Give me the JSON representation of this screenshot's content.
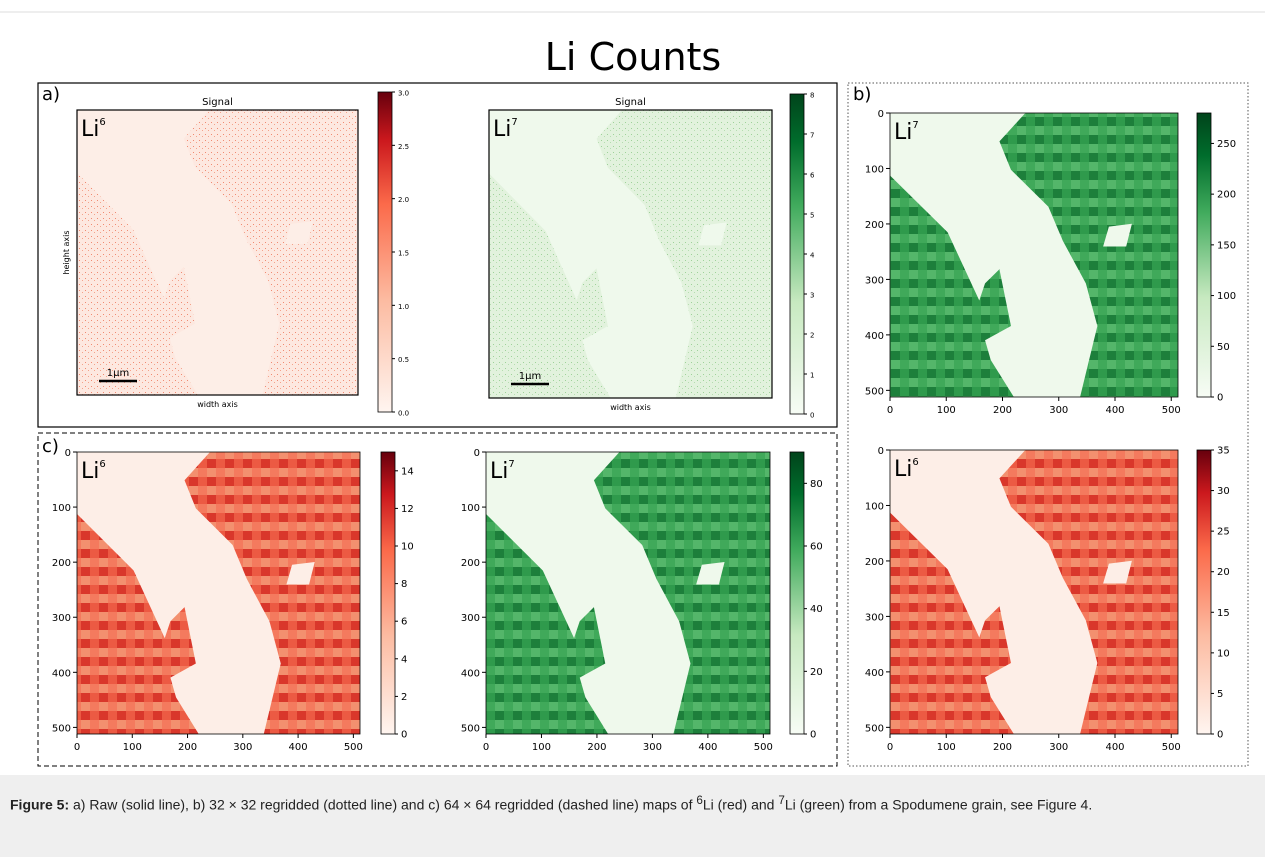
{
  "title": "Li Counts",
  "panels": [
    {
      "label": "a)",
      "maps": [
        {
          "title": "Signal",
          "symbol": "Li",
          "mass": "6",
          "ylabel": "height axis",
          "xlabel": "width axis",
          "scalebar": "1μm",
          "color": "red",
          "clim": [
            0,
            3
          ],
          "cticks": [
            {
              "value": 0,
              "label": "0.0"
            },
            {
              "value": 0.5,
              "label": "0.5"
            },
            {
              "value": 1,
              "label": "1.0"
            },
            {
              "value": 1.5,
              "label": "1.5"
            },
            {
              "value": 2,
              "label": "2.0"
            },
            {
              "value": 2.5,
              "label": "2.5"
            },
            {
              "value": 3,
              "label": "3.0"
            }
          ]
        },
        {
          "title": "Signal",
          "symbol": "Li",
          "mass": "7",
          "xlabel": "width axis",
          "scalebar": "1μm",
          "color": "green",
          "clim": [
            0,
            8
          ],
          "cticks": [
            0,
            1,
            2,
            3,
            4,
            5,
            6,
            7,
            8
          ]
        }
      ]
    },
    {
      "label": "b)",
      "maps": [
        {
          "symbol": "Li",
          "mass": "7",
          "color": "green",
          "xlim": [
            0,
            512
          ],
          "ylim": [
            0,
            512
          ],
          "xticks": [
            0,
            100,
            200,
            300,
            400,
            500
          ],
          "yticks": [
            0,
            100,
            200,
            300,
            400,
            500
          ],
          "clim": [
            0,
            280
          ],
          "cticks": [
            0,
            50,
            100,
            150,
            200,
            250
          ]
        },
        {
          "symbol": "Li",
          "mass": "6",
          "color": "red",
          "xlim": [
            0,
            512
          ],
          "ylim": [
            0,
            512
          ],
          "xticks": [
            0,
            100,
            200,
            300,
            400,
            500
          ],
          "yticks": [
            0,
            100,
            200,
            300,
            400,
            500
          ],
          "clim": [
            0,
            35
          ],
          "cticks": [
            0,
            5,
            10,
            15,
            20,
            25,
            30,
            35
          ]
        }
      ]
    },
    {
      "label": "c)",
      "maps": [
        {
          "symbol": "Li",
          "mass": "6",
          "color": "red",
          "xlim": [
            0,
            512
          ],
          "ylim": [
            0,
            512
          ],
          "xticks": [
            0,
            100,
            200,
            300,
            400,
            500
          ],
          "yticks": [
            0,
            100,
            200,
            300,
            400,
            500
          ],
          "clim": [
            0,
            15
          ],
          "cticks": [
            0,
            2,
            4,
            6,
            8,
            10,
            12,
            14
          ]
        },
        {
          "symbol": "Li",
          "mass": "7",
          "color": "green",
          "xlim": [
            0,
            512
          ],
          "ylim": [
            0,
            512
          ],
          "xticks": [
            0,
            100,
            200,
            300,
            400,
            500
          ],
          "yticks": [
            0,
            100,
            200,
            300,
            400,
            500
          ],
          "clim": [
            0,
            90
          ],
          "cticks": [
            0,
            20,
            40,
            60,
            80
          ]
        }
      ]
    }
  ],
  "caption": {
    "prefix": "Figure 5:",
    "parts": [
      " a) Raw (solid line), b) 32 × 32 regridded (dotted line) and c) 64 × 64 regridded (dashed line) maps of ",
      "6",
      "Li (red) and ",
      "7",
      "Li (green) from a Spodumene grain, see Figure 4."
    ]
  }
}
